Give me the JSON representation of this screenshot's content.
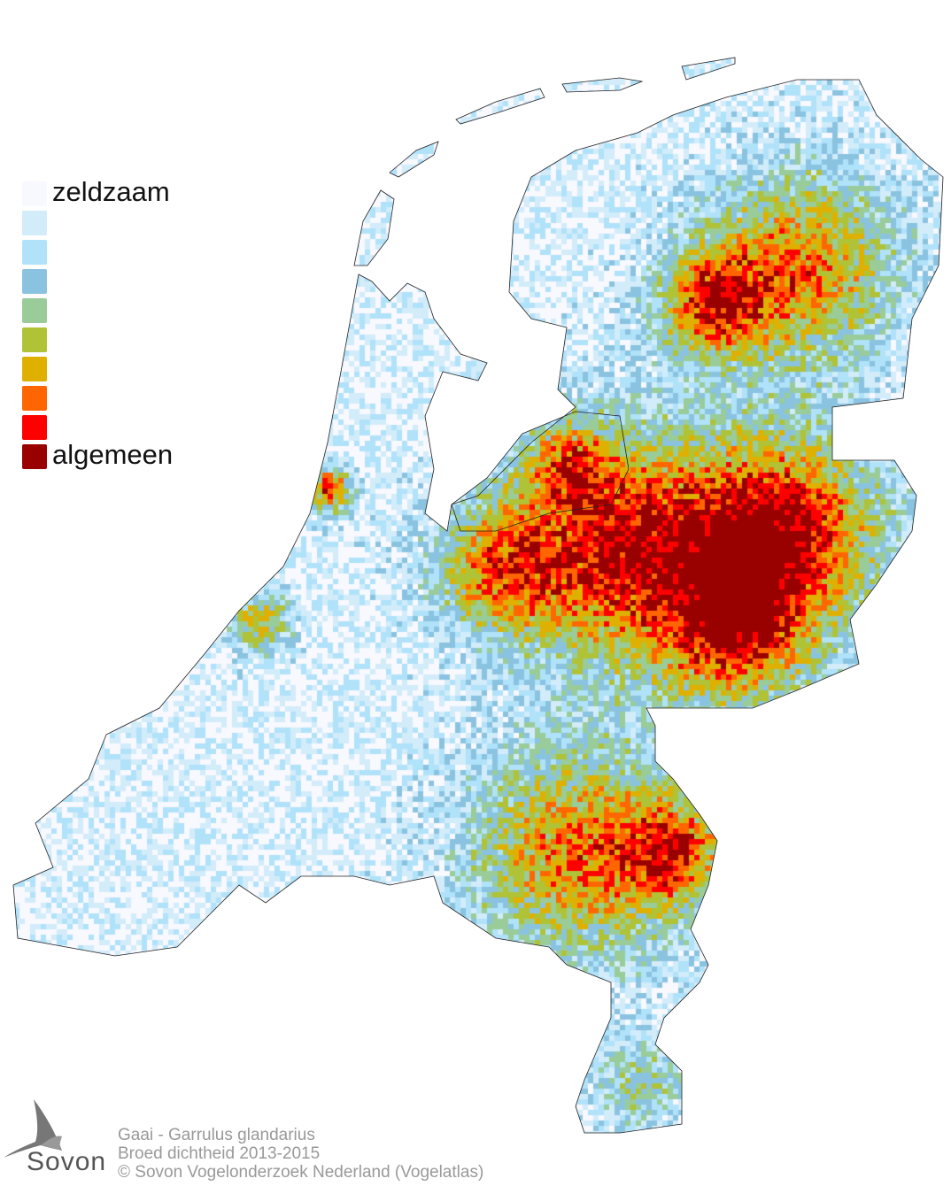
{
  "legend": {
    "low_label": "zeldzaam",
    "high_label": "algemeen",
    "colors": [
      "#f8f8ff",
      "#d2ecfa",
      "#b0e2fa",
      "#8ac3e0",
      "#99cc99",
      "#b0c236",
      "#e0b000",
      "#ff6600",
      "#ff0000",
      "#990000"
    ]
  },
  "footer": {
    "species": "Gaai - Garrulus glandarius",
    "subtitle": "Broed dichtheid 2013-2015",
    "copyright": "© Sovon Vogelonderzoek Nederland (Vogelatlas)"
  },
  "logo": {
    "text": "Sovon"
  }
}
